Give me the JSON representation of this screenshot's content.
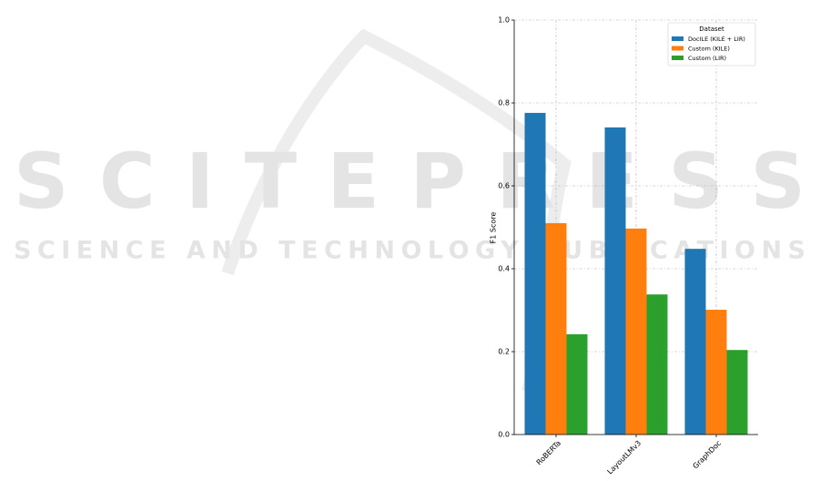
{
  "watermark": {
    "title": "SCITEPRESS",
    "subtitle": "SCIENCE AND TECHNOLOGY PUBLICATIONS"
  },
  "chart_data": {
    "type": "bar",
    "y_label": "F1 Score",
    "categories": [
      "RoBERTa",
      "LayoutLMv3",
      "GraphDoc"
    ],
    "series": [
      {
        "name": "DocILE (KILE + LIR)",
        "color": "#1f77b4",
        "values": [
          0.776,
          0.741,
          0.448
        ]
      },
      {
        "name": "Custom (KILE)",
        "color": "#ff7f0e",
        "values": [
          0.51,
          0.497,
          0.301
        ]
      },
      {
        "name": "Custom (LIR)",
        "color": "#2ca02c",
        "values": [
          0.242,
          0.338,
          0.204
        ]
      }
    ],
    "legend_title": "Dataset",
    "legend": "upper right",
    "ylim": [
      0,
      1
    ],
    "yticks": [
      {
        "value": 0,
        "label": "0.0"
      },
      0.2,
      0.4,
      0.6,
      0.8,
      {
        "value": 1,
        "label": "1.0"
      }
    ],
    "grid": true
  }
}
